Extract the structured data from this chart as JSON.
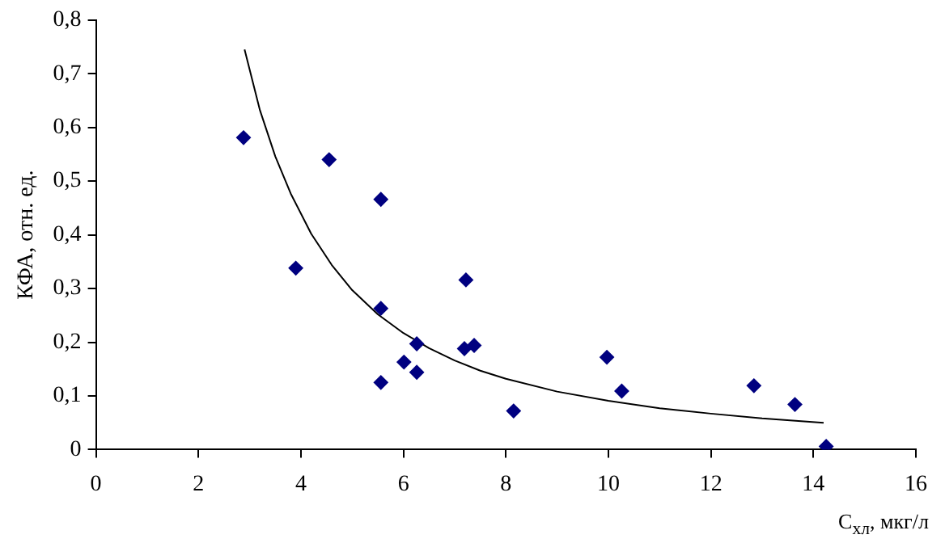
{
  "chart_data": {
    "type": "scatter",
    "xlabel": "C$_{хл}$, мкг/л",
    "ylabel": "КФА, отн. ед.",
    "xlim": [
      0,
      16
    ],
    "xticks": [
      0,
      2,
      4,
      6,
      8,
      10,
      12,
      14,
      16
    ],
    "ylim": [
      0,
      0.8
    ],
    "yticks": [
      0,
      {
        "value": 0.1,
        "label": "0,1"
      },
      {
        "value": 0.2,
        "label": "0,2"
      },
      {
        "value": 0.3,
        "label": "0,3"
      },
      {
        "value": 0.4,
        "label": "0,4"
      },
      {
        "value": 0.5,
        "label": "0,5"
      },
      {
        "value": 0.6,
        "label": "0,6"
      },
      {
        "value": 0.7,
        "label": "0,7"
      },
      {
        "value": 0.8,
        "label": "0,8"
      }
    ],
    "grid": false,
    "legend": false,
    "marker": "diamond",
    "series": [
      {
        "type": "scatter",
        "color": "#000080",
        "x": [
          2.88,
          3.9,
          4.55,
          5.56,
          5.56,
          5.56,
          6.01,
          6.26,
          6.26,
          7.22,
          7.19,
          7.38,
          8.15,
          9.97,
          10.26,
          12.84,
          13.64,
          14.25
        ],
        "values": [
          0.581,
          0.338,
          0.54,
          0.466,
          0.263,
          0.125,
          0.163,
          0.197,
          0.144,
          0.316,
          0.188,
          0.194,
          0.072,
          0.172,
          0.109,
          0.119,
          0.084,
          0.006
        ]
      },
      {
        "type": "line",
        "color": "#000000",
        "marker": "none",
        "x": [
          2.9,
          3.2,
          3.5,
          3.8,
          4.2,
          4.6,
          5,
          5.5,
          6,
          6.5,
          7,
          7.5,
          8,
          9,
          10,
          11,
          12,
          13,
          14.2
        ],
        "values": [
          0.745,
          0.632,
          0.546,
          0.477,
          0.402,
          0.344,
          0.297,
          0.252,
          0.217,
          0.189,
          0.166,
          0.147,
          0.132,
          0.108,
          0.091,
          0.077,
          0.067,
          0.058,
          0.05
        ]
      }
    ]
  }
}
